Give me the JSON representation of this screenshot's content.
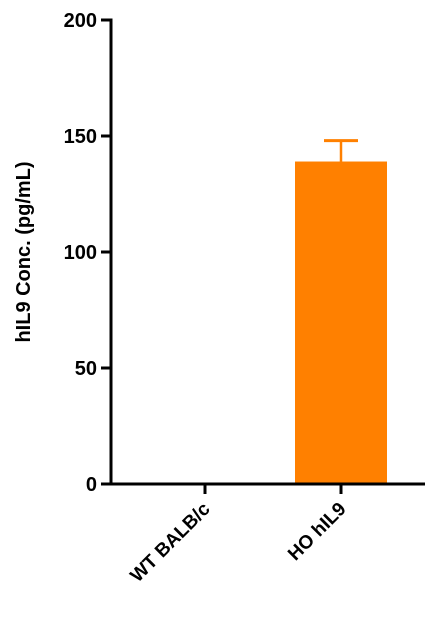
{
  "colors": {
    "axis": "#000000",
    "bar": "#ff8000"
  },
  "chart_data": {
    "type": "bar",
    "title": "",
    "xlabel": "",
    "ylabel": "hIL9 Conc. (pg/mL)",
    "ylim": [
      0,
      200
    ],
    "yticks": [
      0,
      50,
      100,
      150,
      200
    ],
    "yticks_labels": [
      "0",
      "50",
      "100",
      "150",
      "200"
    ],
    "categories": [
      "WT BALB/c",
      "HO hIL9"
    ],
    "values": [
      0,
      139
    ],
    "error_upper": [
      0,
      9
    ],
    "grid": false,
    "legend": "none"
  }
}
